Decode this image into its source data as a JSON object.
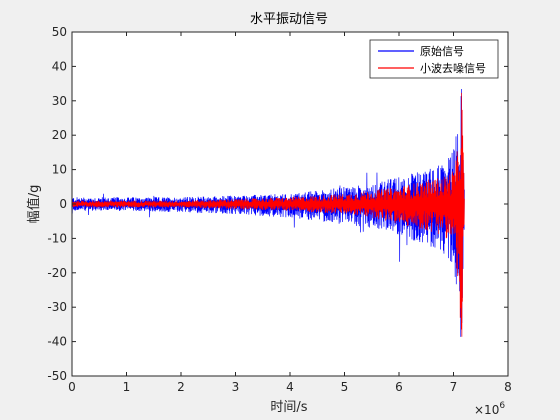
{
  "chart_data": {
    "type": "line",
    "title": "水平振动信号",
    "xlabel": "时间/s",
    "ylabel": "幅值/g",
    "x_multiplier": "×10",
    "x_multiplier_exp": "6",
    "xlim": [
      0,
      8
    ],
    "ylim": [
      -50,
      50
    ],
    "xticks": [
      "0",
      "1",
      "2",
      "3",
      "4",
      "5",
      "6",
      "7",
      "8"
    ],
    "yticks": [
      "50",
      "40",
      "30",
      "20",
      "10",
      "0",
      "-10",
      "-20",
      "-30",
      "-40",
      "-50"
    ],
    "legend_position": "top-right",
    "grid": false,
    "series": [
      {
        "name": "原始信号",
        "color": "#0000ff",
        "envelope": {
          "x": [
            0,
            1,
            2,
            3,
            4,
            5,
            5.5,
            6,
            6.5,
            6.8,
            7.0,
            7.1,
            7.15,
            7.2
          ],
          "upper": [
            2,
            2,
            2,
            2.5,
            3,
            5,
            6,
            8,
            10,
            12,
            16,
            25,
            38,
            6
          ],
          "lower": [
            -2,
            -2,
            -2.5,
            -3,
            -4,
            -6,
            -7,
            -9,
            -12,
            -14,
            -18,
            -30,
            -43,
            -6
          ]
        }
      },
      {
        "name": "小波去噪信号",
        "color": "#ff0000",
        "envelope": {
          "x": [
            0,
            1,
            2,
            3,
            4,
            5,
            5.5,
            6,
            6.5,
            6.8,
            7.0,
            7.1,
            7.15,
            7.2
          ],
          "upper": [
            1,
            1,
            1,
            1.5,
            2,
            3,
            4,
            5,
            7,
            8,
            10,
            18,
            36,
            4
          ],
          "lower": [
            -1,
            -1,
            -1,
            -1.5,
            -2,
            -3,
            -4,
            -6,
            -8,
            -9,
            -12,
            -26,
            -48,
            -4
          ]
        }
      }
    ]
  }
}
